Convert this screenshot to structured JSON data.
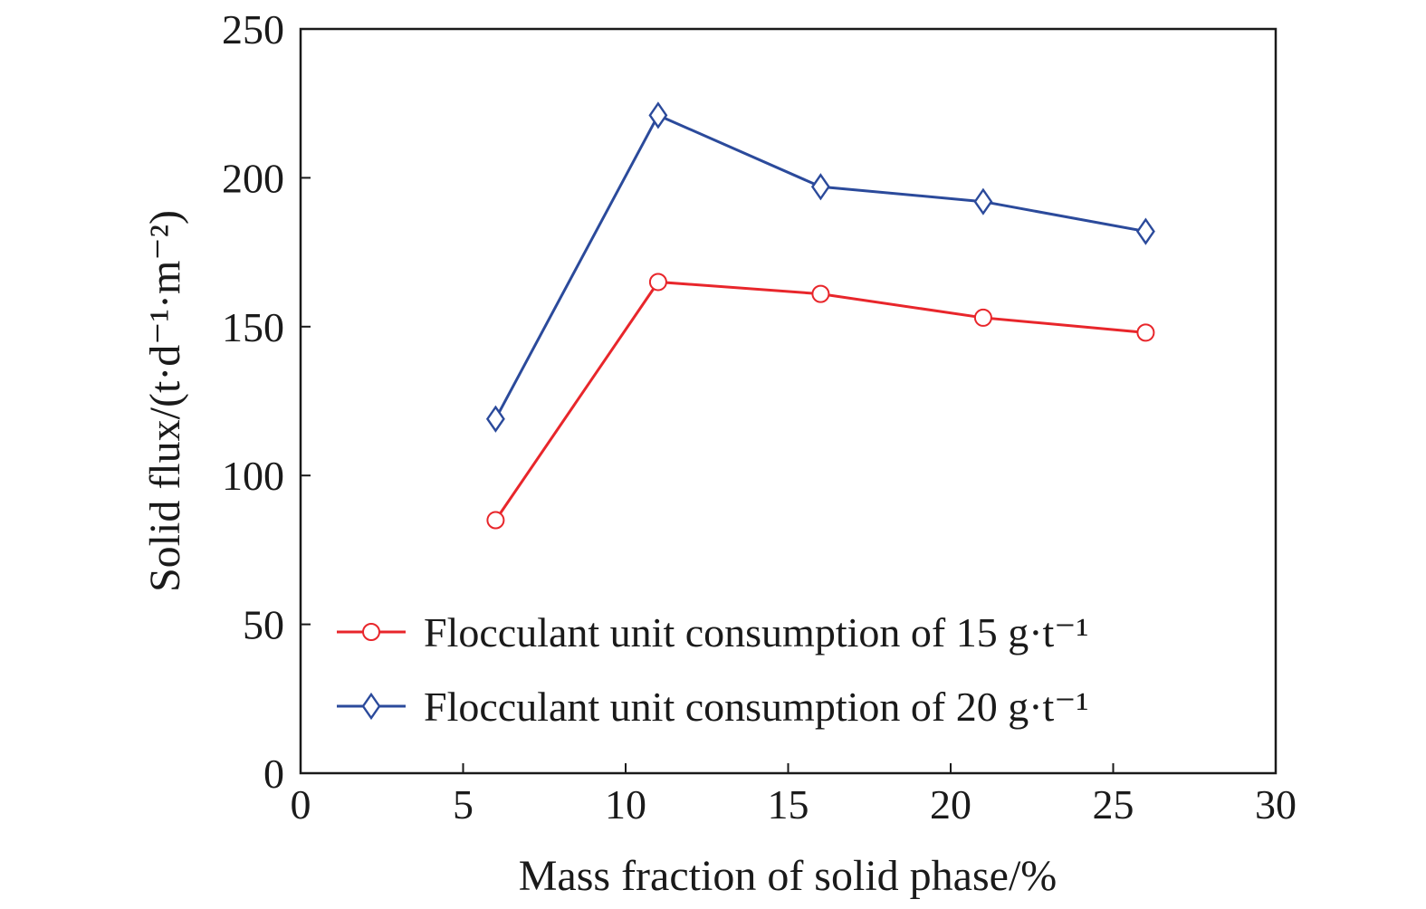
{
  "chart_data": {
    "type": "line",
    "title": "",
    "xlabel": "Mass fraction of solid phase/%",
    "ylabel": "Solid flux/(t·d⁻¹·m⁻²)",
    "xlim": [
      0,
      30
    ],
    "ylim": [
      0,
      250
    ],
    "xticks": [
      0,
      5,
      10,
      15,
      20,
      25,
      30
    ],
    "yticks": [
      0,
      50,
      100,
      150,
      200,
      250
    ],
    "grid": false,
    "legend_position": "lower-left",
    "x": [
      6,
      11,
      16,
      21,
      26
    ],
    "series": [
      {
        "name": "Flocculant unit consumption of 15 g·t⁻¹",
        "color": "#e8262b",
        "marker": "circle",
        "values": [
          85,
          165,
          161,
          153,
          148
        ]
      },
      {
        "name": "Flocculant unit consumption of 20 g·t⁻¹",
        "color": "#2b4a9b",
        "marker": "diamond",
        "values": [
          119,
          221,
          197,
          192,
          182
        ]
      }
    ]
  }
}
